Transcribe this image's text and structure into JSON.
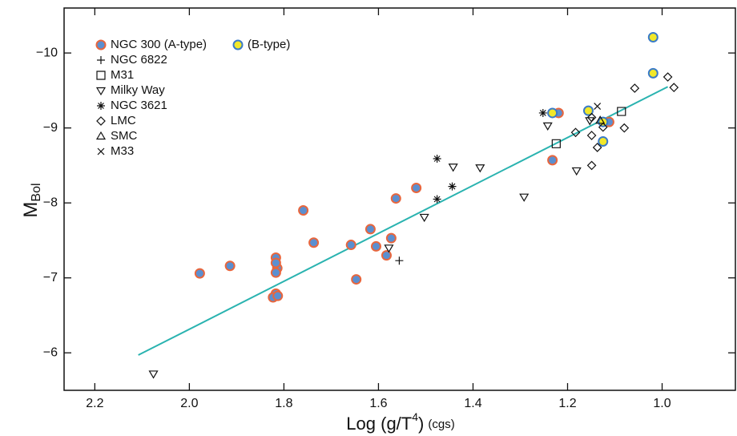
{
  "chart_data": {
    "type": "scatter",
    "y_label": {
      "main": "M",
      "sub": "Bol"
    },
    "x_label": {
      "main": "Log (g/T",
      "sup": "4",
      "close": ")",
      "unit": "(cgs)"
    },
    "xlim": [
      2.265,
      0.845
    ],
    "ylim": [
      -5.5,
      -10.6
    ],
    "xticks": [
      2.2,
      {
        "value": 2,
        "label": "2.0"
      },
      1.8,
      1.6,
      1.4,
      1.2,
      {
        "value": 1,
        "label": "1.0"
      }
    ],
    "yticks": [
      {
        "value": -10,
        "label": "−10"
      },
      {
        "value": -9,
        "label": "−9"
      },
      {
        "value": -8,
        "label": "−8"
      },
      {
        "value": -7,
        "label": "−7"
      },
      {
        "value": -6,
        "label": "−6"
      }
    ],
    "legend": "upper left",
    "fit_line": {
      "x": [
        2.108,
        0.988
      ],
      "y": [
        -5.97,
        -9.55
      ],
      "color": "#2ab3b0"
    },
    "series": [
      {
        "name": "NGC 300 (A-type)",
        "marker": "circle",
        "color": "#e8663d",
        "fill": "#5b8fd0",
        "x": [
          1.978,
          1.914,
          1.814,
          1.817,
          1.817,
          1.817,
          1.817,
          1.823,
          1.813,
          1.759,
          1.737,
          1.658,
          1.647,
          1.617,
          1.605,
          1.583,
          1.573,
          1.563,
          1.52,
          1.232,
          1.219,
          1.112
        ],
        "y": [
          -7.06,
          -7.16,
          -7.13,
          -7.27,
          -7.2,
          -7.07,
          -6.79,
          -6.74,
          -6.76,
          -7.9,
          -7.47,
          -7.44,
          -6.98,
          -7.65,
          -7.42,
          -7.3,
          -7.53,
          -8.06,
          -8.2,
          -8.57,
          -9.2,
          -9.08
        ]
      },
      {
        "name": "(B-type)",
        "marker": "circle",
        "color": "#3a7bc8",
        "fill": "#f2e82a",
        "x": [
          1.232,
          1.156,
          1.125,
          1.125,
          1.019,
          1.019
        ],
        "y": [
          -9.2,
          -9.23,
          -9.08,
          -8.82,
          -10.21,
          -9.73
        ]
      },
      {
        "name": "NGC 6822",
        "marker": "plus",
        "color": "#111111",
        "x": [
          1.556
        ],
        "y": [
          -7.23
        ]
      },
      {
        "name": "M31",
        "marker": "square",
        "color": "#111111",
        "x": [
          1.224,
          1.086
        ],
        "y": [
          -8.79,
          -9.22
        ]
      },
      {
        "name": "Milky Way",
        "marker": "tri-down",
        "color": "#111111",
        "x": [
          2.076,
          1.578,
          1.503,
          1.442,
          1.385,
          1.292,
          1.242,
          1.181,
          1.153
        ],
        "y": [
          -5.72,
          -7.4,
          -7.81,
          -8.48,
          -8.47,
          -8.08,
          -9.03,
          -8.43,
          -9.1
        ]
      },
      {
        "name": "NGC 3621",
        "marker": "star",
        "color": "#111111",
        "x": [
          1.476,
          1.476,
          1.444,
          1.252
        ],
        "y": [
          -8.59,
          -8.05,
          -8.22,
          -9.2
        ]
      },
      {
        "name": "LMC",
        "marker": "diamond",
        "color": "#111111",
        "x": [
          1.183,
          1.149,
          1.149,
          1.149,
          1.137,
          1.125,
          1.08,
          1.058,
          0.988,
          0.975
        ],
        "y": [
          -8.94,
          -8.5,
          -8.9,
          -9.14,
          -8.74,
          -9.01,
          -9.0,
          -9.53,
          -9.68,
          -9.54
        ]
      },
      {
        "name": "SMC",
        "marker": "tri-up",
        "color": "#111111",
        "x": [
          1.131
        ],
        "y": [
          -9.1
        ]
      },
      {
        "name": "M33",
        "marker": "cross",
        "color": "#111111",
        "x": [
          1.137
        ],
        "y": [
          -9.29
        ]
      }
    ]
  }
}
